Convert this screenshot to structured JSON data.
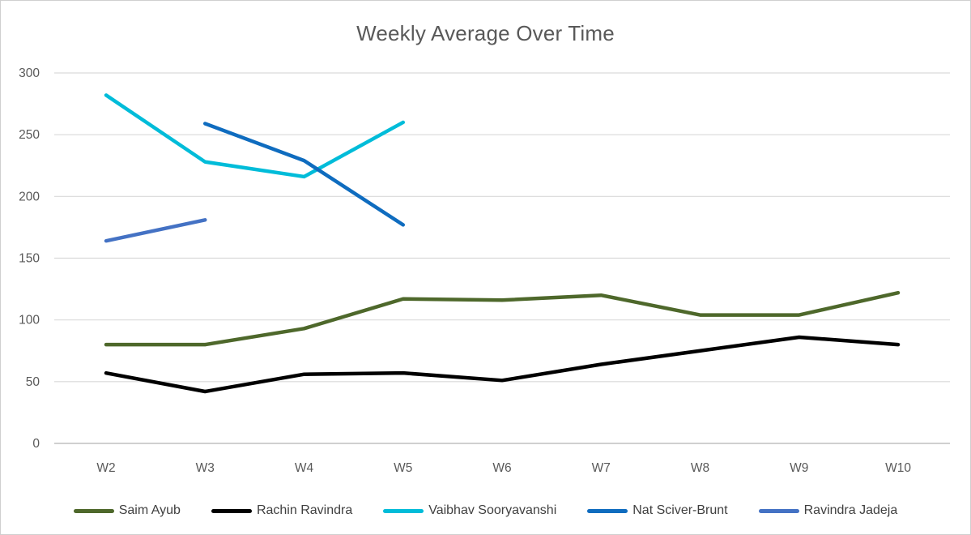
{
  "title": "Weekly Average Over Time",
  "chart_data": {
    "type": "line",
    "title": "Weekly Average Over Time",
    "categories": [
      "W2",
      "W3",
      "W4",
      "W5",
      "W6",
      "W7",
      "W8",
      "W9",
      "W10"
    ],
    "series": [
      {
        "name": "Saim Ayub",
        "color": "#4e682b",
        "values": [
          80,
          80,
          93,
          117,
          116,
          120,
          104,
          104,
          122
        ]
      },
      {
        "name": "Rachin Ravindra",
        "color": "#000000",
        "values": [
          57,
          42,
          56,
          57,
          51,
          64,
          75,
          86,
          80
        ]
      },
      {
        "name": "Vaibhav Sooryavanshi",
        "color": "#00bcd9",
        "values": [
          282,
          228,
          216,
          260,
          null,
          null,
          null,
          null,
          null
        ]
      },
      {
        "name": "Nat Sciver-Brunt",
        "color": "#0f6cbf",
        "values": [
          null,
          259,
          229,
          177,
          null,
          null,
          null,
          null,
          null
        ]
      },
      {
        "name": "Ravindra Jadeja",
        "color": "#4472c4",
        "values": [
          164,
          181,
          null,
          null,
          null,
          null,
          null,
          null,
          null
        ]
      }
    ],
    "ylim": [
      0,
      300
    ],
    "ytick_step": 50,
    "ytick_labels": [
      "0",
      "50",
      "100",
      "150",
      "200",
      "250",
      "300"
    ],
    "grid": true,
    "legend_position": "bottom"
  },
  "style": {
    "gridline_color": "#d9d9d9",
    "axis_line_color": "#c0c0c0",
    "tick_label_color": "#595959",
    "title_color": "#595959",
    "legend_text_color": "#404040",
    "background": "#ffffff"
  }
}
